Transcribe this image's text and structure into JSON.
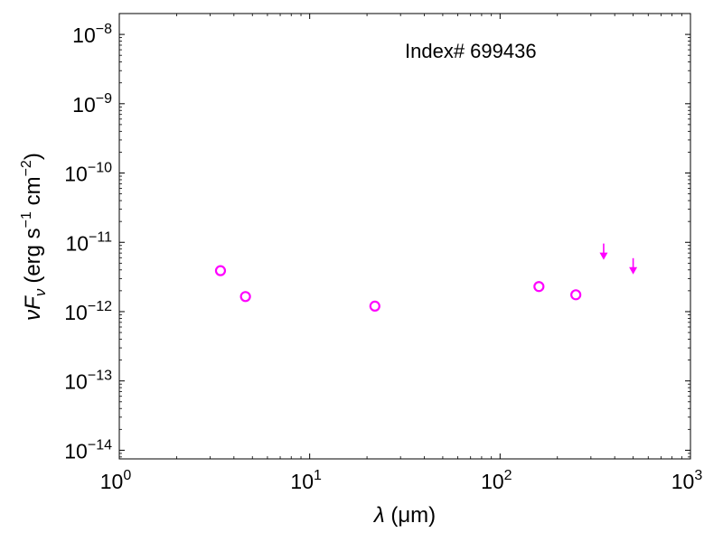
{
  "chart_data": {
    "type": "scatter",
    "title": "",
    "annotation": "Index# 699436",
    "xlabel": {
      "symbol": "λ",
      "unit": "(μm)"
    },
    "ylabel": {
      "symbol": "νF",
      "subscript": "ν",
      "unit_prefix": "(erg s",
      "exp1": "−1",
      "unit_mid": " cm",
      "exp2": "−2",
      "unit_suffix": ")"
    },
    "xscale": "log",
    "yscale": "log",
    "xlim": [
      1,
      1000
    ],
    "ylim": [
      7.5e-15,
      2e-08
    ],
    "grid": false,
    "x_ticks": [
      {
        "value": 1,
        "base": "10",
        "exp": "0"
      },
      {
        "value": 10,
        "base": "10",
        "exp": "1"
      },
      {
        "value": 100,
        "base": "10",
        "exp": "2"
      },
      {
        "value": 1000,
        "base": "10",
        "exp": "3"
      }
    ],
    "y_ticks": [
      {
        "value": 1e-14,
        "base": "10",
        "exp": "−14"
      },
      {
        "value": 1e-13,
        "base": "10",
        "exp": "−13"
      },
      {
        "value": 1e-12,
        "base": "10",
        "exp": "−12"
      },
      {
        "value": 1e-11,
        "base": "10",
        "exp": "−11"
      },
      {
        "value": 1e-10,
        "base": "10",
        "exp": "−10"
      },
      {
        "value": 1e-09,
        "base": "10",
        "exp": "−9"
      },
      {
        "value": 1e-08,
        "base": "10",
        "exp": "−8"
      }
    ],
    "series": [
      {
        "marker": "open-circle",
        "color": "#ff00ff",
        "points": [
          {
            "x": 3.4,
            "y": 3.9e-12
          },
          {
            "x": 4.6,
            "y": 1.65e-12
          },
          {
            "x": 22,
            "y": 1.2e-12
          },
          {
            "x": 160,
            "y": 2.3e-12
          },
          {
            "x": 250,
            "y": 1.75e-12
          }
        ]
      },
      {
        "marker": "upper-limit-arrow",
        "color": "#ff00ff",
        "points": [
          {
            "x": 350,
            "y": 6.5e-12
          },
          {
            "x": 500,
            "y": 4e-12
          }
        ]
      }
    ]
  }
}
